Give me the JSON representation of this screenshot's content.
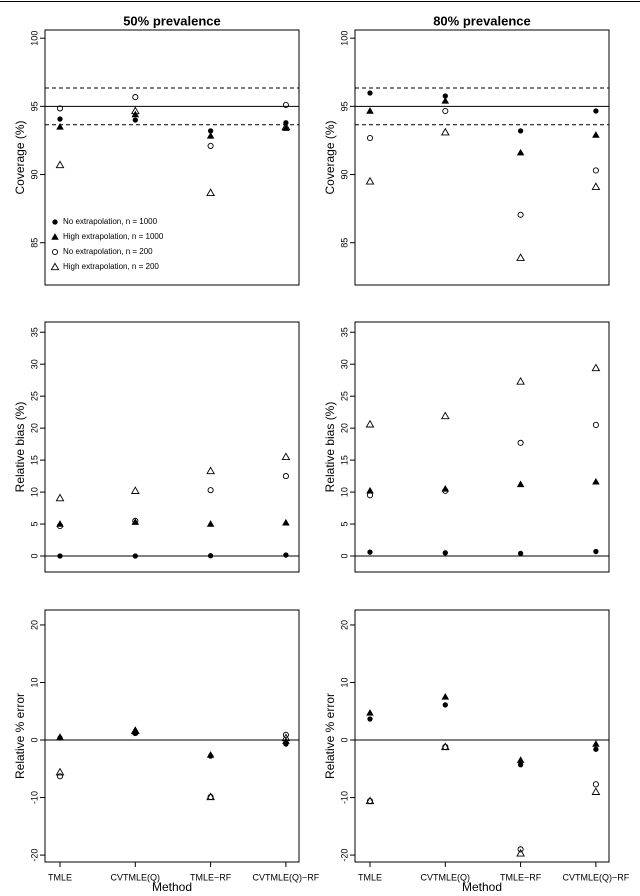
{
  "chart_data": [
    {
      "type": "scatter",
      "title": "50% prevalence",
      "ylabel": "Coverage (%)",
      "ylim": [
        81.9,
        100.6
      ],
      "yticks": [
        85,
        90,
        95,
        100
      ],
      "hlines": [
        {
          "value": 95,
          "style": "solid"
        },
        {
          "value": 96.35,
          "style": "dashed"
        },
        {
          "value": 93.65,
          "style": "dashed"
        }
      ],
      "legend": "lower left",
      "series": [
        {
          "name": "No extrapolation, n = 1000",
          "marker": "filled-circle",
          "values": [
            94.07,
            94.0,
            93.2,
            93.8
          ]
        },
        {
          "name": "High extrapolation, n = 1000",
          "marker": "filled-triangle",
          "values": [
            93.49,
            94.4,
            92.83,
            93.4
          ]
        },
        {
          "name": "No extrapolation, n = 200",
          "marker": "open-circle",
          "values": [
            94.85,
            95.68,
            92.1,
            95.1
          ]
        },
        {
          "name": "High extrapolation, n = 200",
          "marker": "open-triangle",
          "values": [
            90.7,
            94.66,
            88.66,
            93.5
          ]
        }
      ]
    },
    {
      "type": "scatter",
      "title": "80% prevalence",
      "ylabel": "Coverage (%)",
      "ylim": [
        81.9,
        100.6
      ],
      "yticks": [
        85,
        90,
        95,
        100
      ],
      "hlines": [
        {
          "value": 95,
          "style": "solid"
        },
        {
          "value": 96.35,
          "style": "dashed"
        },
        {
          "value": 93.65,
          "style": "dashed"
        }
      ],
      "series": [
        {
          "marker": "filled-circle",
          "values": [
            95.98,
            95.76,
            93.2,
            94.66
          ]
        },
        {
          "marker": "filled-triangle",
          "values": [
            94.66,
            95.4,
            91.6,
            92.9
          ]
        },
        {
          "marker": "open-circle",
          "values": [
            92.68,
            94.66,
            87.05,
            90.3
          ]
        },
        {
          "marker": "open-triangle",
          "values": [
            89.5,
            93.1,
            83.9,
            89.1
          ]
        }
      ]
    },
    {
      "type": "scatter",
      "ylabel": "Relative bias (%)",
      "ylim": [
        -2.5,
        36.6
      ],
      "yticks": [
        0,
        5,
        10,
        15,
        20,
        25,
        30,
        35
      ],
      "hlines": [
        {
          "value": 0,
          "style": "solid"
        }
      ],
      "series": [
        {
          "marker": "filled-circle",
          "values": [
            0,
            0,
            0.05,
            0.15
          ]
        },
        {
          "marker": "filled-triangle",
          "values": [
            5.0,
            5.3,
            5.0,
            5.2
          ]
        },
        {
          "marker": "open-circle",
          "values": [
            4.7,
            5.5,
            10.3,
            12.5
          ]
        },
        {
          "marker": "open-triangle",
          "values": [
            9.06,
            10.2,
            13.3,
            15.5
          ]
        }
      ]
    },
    {
      "type": "scatter",
      "ylabel": "Relative bias (%)",
      "ylim": [
        -2.5,
        36.6
      ],
      "yticks": [
        0,
        5,
        10,
        15,
        20,
        25,
        30,
        35
      ],
      "hlines": [
        {
          "value": 0,
          "style": "solid"
        }
      ],
      "series": [
        {
          "marker": "filled-circle",
          "values": [
            0.6,
            0.5,
            0.4,
            0.7
          ]
        },
        {
          "marker": "filled-triangle",
          "values": [
            10.2,
            10.5,
            11.2,
            11.6
          ]
        },
        {
          "marker": "open-circle",
          "values": [
            9.5,
            10.2,
            17.7,
            20.5
          ]
        },
        {
          "marker": "open-triangle",
          "values": [
            20.6,
            21.9,
            27.3,
            29.4
          ]
        }
      ]
    },
    {
      "type": "scatter",
      "ylabel": "Relative % error",
      "xlabel": "Method",
      "ylim": [
        -21.2,
        22.6
      ],
      "yticks": [
        -20,
        -10,
        0,
        10,
        20
      ],
      "categories": [
        "TMLE",
        "CVTMLE(Q)",
        "TMLE−RF",
        "CVTMLE(Q)−RF"
      ],
      "hlines": [
        {
          "value": 0,
          "style": "solid"
        }
      ],
      "series": [
        {
          "marker": "filled-circle",
          "values": [
            0.35,
            1.2,
            -2.8,
            -0.7
          ]
        },
        {
          "marker": "filled-triangle",
          "values": [
            0.5,
            1.7,
            -2.6,
            -0.2
          ]
        },
        {
          "marker": "open-circle",
          "values": [
            -6.3,
            1.2,
            -9.9,
            0.9
          ]
        },
        {
          "marker": "open-triangle",
          "values": [
            -5.6,
            1.6,
            -9.9,
            0.35
          ]
        }
      ]
    },
    {
      "type": "scatter",
      "ylabel": "Relative % error",
      "xlabel": "Method",
      "ylim": [
        -21.2,
        22.6
      ],
      "yticks": [
        -20,
        -10,
        0,
        10,
        20
      ],
      "categories": [
        "TMLE",
        "CVTMLE(Q)",
        "TMLE−RF",
        "CVTMLE(Q)−RF"
      ],
      "hlines": [
        {
          "value": 0,
          "style": "solid"
        }
      ],
      "series": [
        {
          "marker": "filled-circle",
          "values": [
            3.65,
            6.1,
            -4.3,
            -1.6
          ]
        },
        {
          "marker": "filled-triangle",
          "values": [
            4.7,
            7.5,
            -3.5,
            -0.7
          ]
        },
        {
          "marker": "open-circle",
          "values": [
            -10.6,
            -1.2,
            -19.0,
            -7.7
          ]
        },
        {
          "marker": "open-triangle",
          "values": [
            -10.6,
            -1.2,
            -19.7,
            -9.0
          ]
        }
      ]
    }
  ]
}
